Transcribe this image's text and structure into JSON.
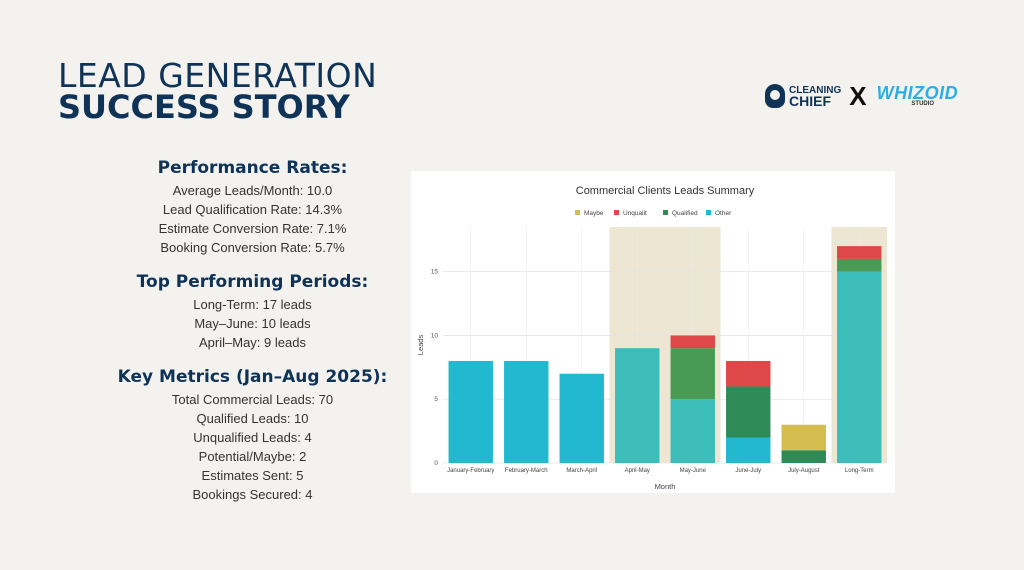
{
  "title": {
    "line1": "LEAD GENERATION",
    "line2": "SUCCESS STORY"
  },
  "logos": {
    "left_top": "CLEANING",
    "left_bottom": "CHIEF",
    "separator": "X",
    "right_top": "WHIZOID",
    "right_bottom": "STUDIO"
  },
  "performance": {
    "heading": "Performance Rates:",
    "lines": [
      "Average Leads/Month: 10.0",
      "Lead Qualification Rate: 14.3%",
      "Estimate Conversion Rate: 7.1%",
      "Booking Conversion Rate: 5.7%"
    ]
  },
  "top_periods": {
    "heading": "Top Performing Periods:",
    "lines": [
      "Long-Term: 17 leads",
      "May–June: 10 leads",
      "April–May: 9 leads"
    ]
  },
  "key_metrics": {
    "heading": "Key Metrics (Jan–Aug 2025):",
    "lines": [
      "Total Commercial Leads: 70",
      "Qualified Leads: 10",
      "Unqualified Leads: 4",
      "Potential/Maybe: 2",
      "Estimates Sent: 5",
      "Bookings Secured: 4"
    ]
  },
  "colors": {
    "other": "#22b8cf",
    "other_highlight": "#3dbdb9",
    "qualified": "#2e8b57",
    "qualified_highlight": "#489a55",
    "unqualified": "#de4848",
    "maybe": "#d4bc4e",
    "highlight_band": "#ede6d3",
    "title": "#0f3357"
  },
  "chart_data": {
    "type": "bar",
    "stacked": true,
    "title": "Commercial Clients Leads Summary",
    "xlabel": "Month",
    "ylabel": "Leads",
    "ylim": [
      0,
      18.5
    ],
    "yticks": [
      0,
      5,
      10,
      15
    ],
    "legend_position": "top-center",
    "categories": [
      "January-February",
      "February-March",
      "March-April",
      "April-May",
      "May-June",
      "June-July",
      "July-August",
      "Long-Term"
    ],
    "highlighted_categories": [
      "April-May",
      "May-June",
      "Long-Term"
    ],
    "series": [
      {
        "name": "Other",
        "values": [
          8,
          8,
          7,
          9,
          5,
          2,
          0,
          15
        ]
      },
      {
        "name": "Qualified",
        "values": [
          0,
          0,
          0,
          0,
          4,
          4,
          1,
          1
        ]
      },
      {
        "name": "Unqualit",
        "values": [
          0,
          0,
          0,
          0,
          1,
          2,
          0,
          1
        ]
      },
      {
        "name": "Maybe",
        "values": [
          0,
          0,
          0,
          0,
          0,
          0,
          2,
          0
        ]
      }
    ],
    "legend_order": [
      "Maybe",
      "Unqualit",
      "Qualified",
      "Other"
    ]
  }
}
